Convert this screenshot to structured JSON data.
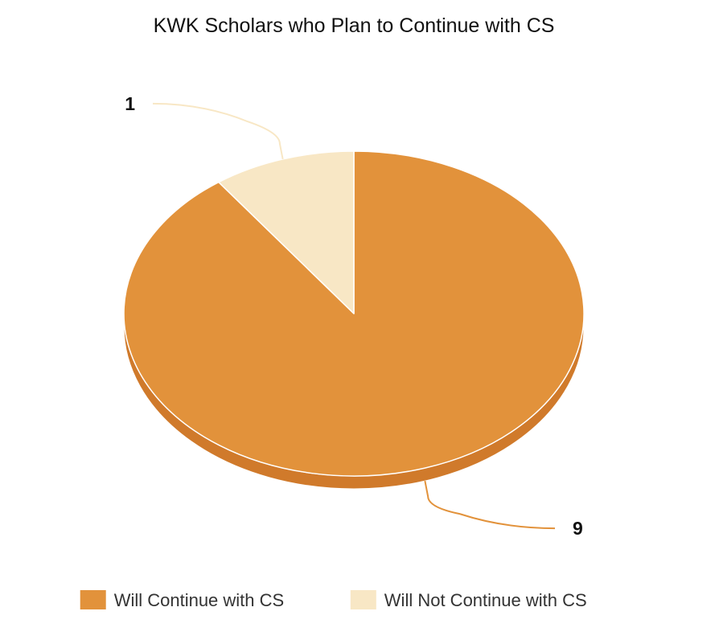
{
  "chart_data": {
    "type": "pie",
    "title": "KWK Scholars who Plan to Continue with CS",
    "categories": [
      "Will Continue with CS",
      "Will Not Continue with CS"
    ],
    "values": [
      9,
      1
    ],
    "data_labels": [
      "9",
      "1"
    ],
    "colors": [
      "#e2923b",
      "#f8e7c5"
    ],
    "side_color": "#d07a2b",
    "leader_colors": [
      "#e2923b",
      "#f8e7c5"
    ],
    "legend": {
      "placement": "bottom-center",
      "items": [
        {
          "label": "Will Continue with CS",
          "color": "#e2923b"
        },
        {
          "label": "Will Not Continue with CS",
          "color": "#f8e7c5"
        }
      ]
    }
  }
}
